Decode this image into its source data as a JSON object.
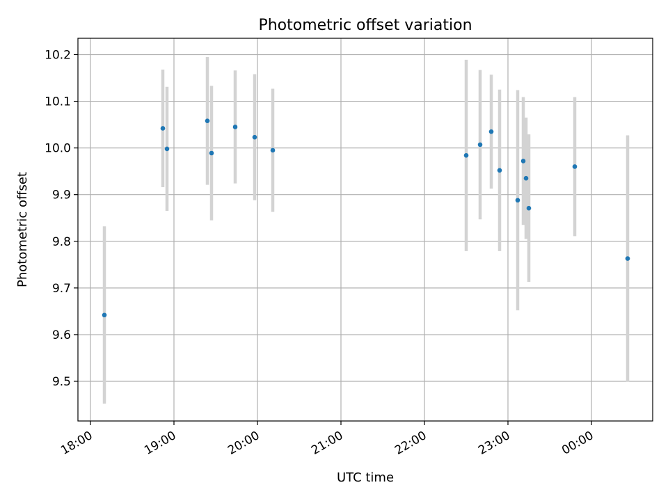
{
  "chart_data": {
    "type": "scatter",
    "title": "Photometric offset variation",
    "xlabel": "UTC time",
    "ylabel": "Photometric offset",
    "x_axis_type": "time",
    "x_ticks": [
      "18:00",
      "19:00",
      "20:00",
      "21:00",
      "22:00",
      "23:00",
      "00:00"
    ],
    "x_tick_minutes": [
      1080,
      1140,
      1200,
      1260,
      1320,
      1380,
      1440
    ],
    "xlim_minutes": [
      1071,
      1484
    ],
    "y_ticks": [
      "9.5",
      "9.6",
      "9.7",
      "9.8",
      "9.9",
      "10.0",
      "10.1",
      "10.2"
    ],
    "y_tick_values": [
      9.5,
      9.6,
      9.7,
      9.8,
      9.9,
      10.0,
      10.1,
      10.2
    ],
    "ylim": [
      9.415,
      10.235
    ],
    "grid": true,
    "legend": "none",
    "colors": {
      "points": "#1f77b4",
      "errorbars": "#d3d3d3",
      "grid": "#b0b0b0",
      "axes": "#000000"
    },
    "points": [
      {
        "x": "18:10",
        "y": 9.642,
        "yerr": 0.19
      },
      {
        "x": "18:52",
        "y": 10.042,
        "yerr": 0.126
      },
      {
        "x": "18:55",
        "y": 9.998,
        "yerr": 0.133
      },
      {
        "x": "19:24",
        "y": 10.058,
        "yerr": 0.137
      },
      {
        "x": "19:27",
        "y": 9.989,
        "yerr": 0.144
      },
      {
        "x": "19:44",
        "y": 10.045,
        "yerr": 0.121
      },
      {
        "x": "19:58",
        "y": 10.023,
        "yerr": 0.135
      },
      {
        "x": "20:11",
        "y": 9.995,
        "yerr": 0.132
      },
      {
        "x": "22:30",
        "y": 9.984,
        "yerr": 0.205
      },
      {
        "x": "22:40",
        "y": 10.007,
        "yerr": 0.16
      },
      {
        "x": "22:48",
        "y": 10.035,
        "yerr": 0.122
      },
      {
        "x": "22:54",
        "y": 9.952,
        "yerr": 0.173
      },
      {
        "x": "23:07",
        "y": 9.888,
        "yerr": 0.236
      },
      {
        "x": "23:11",
        "y": 9.972,
        "yerr": 0.137
      },
      {
        "x": "23:13",
        "y": 9.935,
        "yerr": 0.13
      },
      {
        "x": "23:15",
        "y": 9.871,
        "yerr": 0.158
      },
      {
        "x": "23:48",
        "y": 9.96,
        "yerr": 0.149
      },
      {
        "x": "00:26",
        "y": 9.763,
        "yerr": 0.264
      }
    ]
  }
}
